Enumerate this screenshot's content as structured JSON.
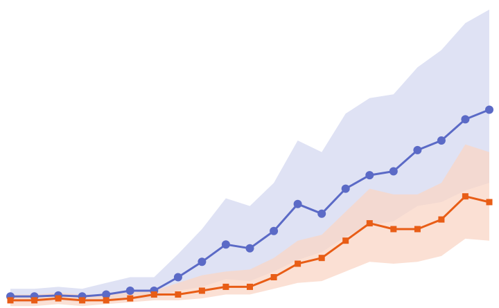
{
  "chart_data": {
    "type": "line",
    "title": "",
    "xlabel": "",
    "ylabel": "",
    "grid": false,
    "axes_visible": false,
    "x": [
      0,
      1,
      2,
      3,
      4,
      5,
      6,
      7,
      8,
      9,
      10,
      11,
      12,
      13,
      14,
      15,
      16,
      17,
      18,
      19,
      20
    ],
    "series": [
      {
        "color": "#5b6ac6",
        "band_color": "#dfe2f4",
        "marker": "circle",
        "values": [
          1,
          1,
          1.5,
          1,
          2,
          4,
          4,
          11,
          19,
          28,
          26,
          35,
          49,
          44,
          57,
          64,
          66,
          77,
          82,
          93,
          98
        ],
        "upper": [
          5,
          5,
          6,
          5,
          8,
          11,
          11,
          23,
          36,
          52,
          48,
          60,
          82,
          76,
          96,
          104,
          106,
          120,
          129,
          143,
          150
        ],
        "lower": [
          -2,
          -2,
          -1,
          -2,
          -1,
          0,
          0,
          4,
          6,
          10,
          9,
          14,
          20,
          24,
          32,
          38,
          40,
          48,
          50,
          56,
          60
        ]
      },
      {
        "color": "#e85d16",
        "band_color": "#f9d6c6",
        "marker": "square",
        "values": [
          -1,
          -1,
          0,
          -1,
          -1,
          0,
          2,
          2,
          4,
          6,
          6,
          11,
          18,
          21,
          30,
          39,
          36,
          36,
          41,
          53,
          50
        ],
        "upper": [
          2,
          2,
          3,
          2,
          2,
          3,
          4,
          8,
          12,
          14,
          15,
          21,
          30,
          33,
          45,
          57,
          54,
          54,
          60,
          80,
          76
        ],
        "lower": [
          -4,
          -4,
          -3,
          -4,
          -3,
          -2,
          -1,
          -1,
          0,
          2,
          2,
          5,
          8,
          9,
          14,
          19,
          18,
          19,
          22,
          31,
          30
        ]
      }
    ],
    "xlim": [
      0,
      20
    ],
    "ylim": [
      -5,
      155
    ]
  }
}
